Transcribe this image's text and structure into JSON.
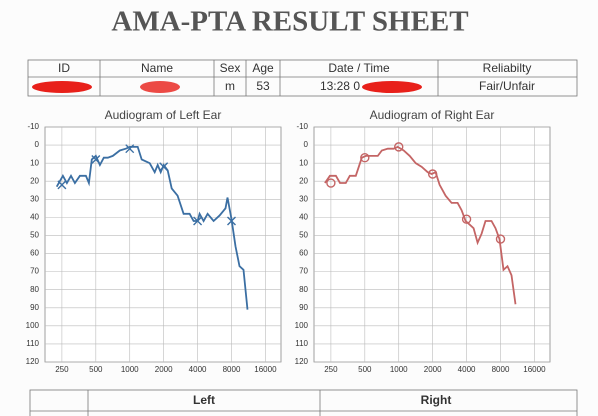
{
  "header": {
    "title": "AMA-PTA RESULT SHEET"
  },
  "info_table": {
    "headers": [
      "ID",
      "Name",
      "Sex",
      "Age",
      "Date / Time",
      "Reliabilty"
    ],
    "row": {
      "sex": "m",
      "age": "53",
      "datetime": "13:28 0",
      "reliability": "Fair/Unfair"
    }
  },
  "chart_data": [
    {
      "type": "line",
      "title": "Audiogram of Left Ear",
      "xscale": "log",
      "y_inverted": true,
      "grid": true,
      "color": "#3b6fa3",
      "xlim": [
        177,
        22000
      ],
      "ylim": [
        -10,
        120
      ],
      "xticks": [
        250,
        500,
        1000,
        2000,
        4000,
        8000,
        16000
      ],
      "yticks": [
        -10,
        0,
        10,
        20,
        30,
        40,
        50,
        60,
        70,
        80,
        90,
        100,
        110,
        120
      ],
      "x": [
        225,
        255,
        277,
        301,
        326,
        361,
        408,
        434,
        461,
        500,
        543,
        589,
        639,
        707,
        816,
        922,
        1000,
        1177,
        1278,
        1503,
        1665,
        1770,
        1882,
        2000,
        2171,
        2355,
        2661,
        3006,
        3398,
        3687,
        4000,
        4168,
        4520,
        4905,
        5544,
        6264,
        7082,
        7374,
        8000,
        8681,
        9420,
        10220,
        11090
      ],
      "values": [
        23,
        17,
        21,
        17,
        21,
        17,
        17,
        21,
        8,
        6,
        11,
        7,
        7,
        6,
        3,
        2,
        1,
        1,
        8,
        10,
        15,
        11,
        15,
        11,
        14,
        24,
        28,
        38,
        38,
        42,
        42,
        38,
        42,
        38,
        42,
        39,
        35,
        29,
        41,
        56,
        67,
        69,
        91
      ],
      "markers": {
        "symbol": "x",
        "x": [
          250,
          500,
          1000,
          2000,
          4000,
          8000
        ],
        "values": [
          22,
          8,
          2,
          12,
          42,
          42
        ]
      }
    },
    {
      "type": "line",
      "title": "Audiogram of Right Ear",
      "xscale": "log",
      "y_inverted": true,
      "grid": true,
      "color": "#c46565",
      "xlim": [
        177,
        22000
      ],
      "ylim": [
        -10,
        120
      ],
      "xticks": [
        250,
        500,
        1000,
        2000,
        4000,
        8000,
        16000
      ],
      "yticks": [
        -10,
        0,
        10,
        20,
        30,
        40,
        50,
        60,
        70,
        80,
        90,
        100,
        110,
        120
      ],
      "x": [
        221,
        245,
        277,
        301,
        339,
        368,
        416,
        470,
        510,
        577,
        652,
        707,
        799,
        903,
        980,
        1107,
        1252,
        1414,
        1598,
        1806,
        1960,
        2126,
        2307,
        2607,
        2947,
        3330,
        3612,
        3920,
        4253,
        4614,
        5006,
        5432,
        5894,
        6658,
        7224,
        7838,
        8505,
        9228,
        10010,
        10860
      ],
      "values": [
        21,
        17,
        17,
        21,
        21,
        17,
        17,
        7,
        6,
        6,
        6,
        3,
        2,
        2,
        1,
        3,
        6,
        10,
        12,
        15,
        16,
        15,
        22,
        28,
        32,
        32,
        36,
        42,
        44,
        46,
        54,
        49,
        42,
        42,
        46,
        52,
        69,
        67,
        72,
        88
      ],
      "markers": {
        "symbol": "o",
        "x": [
          250,
          500,
          1000,
          2000,
          4000,
          8000
        ],
        "values": [
          21,
          7,
          1,
          16,
          41,
          52
        ]
      }
    }
  ],
  "result_table": {
    "headers": [
      "Left",
      "Right"
    ]
  }
}
